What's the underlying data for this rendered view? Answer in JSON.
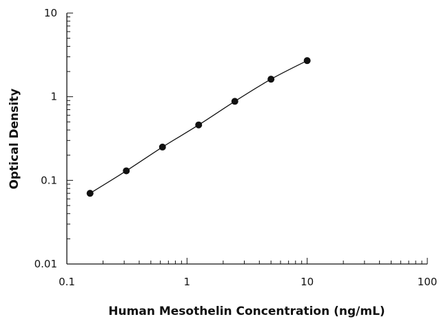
{
  "chart_data": {
    "type": "line",
    "title": "",
    "xlabel": "Human Mesothelin Concentration (ng/mL)",
    "ylabel": "Optical Density",
    "x_scale": "log",
    "y_scale": "log",
    "xlim": [
      0.1,
      100
    ],
    "ylim": [
      0.01,
      10
    ],
    "x_ticks": [
      {
        "value": 0.1,
        "label": "0.1"
      },
      {
        "value": 1,
        "label": "1"
      },
      {
        "value": 10,
        "label": "10"
      },
      {
        "value": 100,
        "label": "100"
      }
    ],
    "y_ticks": [
      {
        "value": 0.01,
        "label": "0.01"
      },
      {
        "value": 0.1,
        "label": "0.1"
      },
      {
        "value": 1,
        "label": "1"
      },
      {
        "value": 10,
        "label": "10"
      }
    ],
    "grid": false,
    "legend": "none",
    "series": [
      {
        "marker": "circle",
        "color": "#111111",
        "x": [
          0.156,
          0.3125,
          0.625,
          1.25,
          2.5,
          5,
          10
        ],
        "y": [
          0.07,
          0.13,
          0.25,
          0.46,
          0.88,
          1.62,
          2.7
        ]
      }
    ]
  }
}
